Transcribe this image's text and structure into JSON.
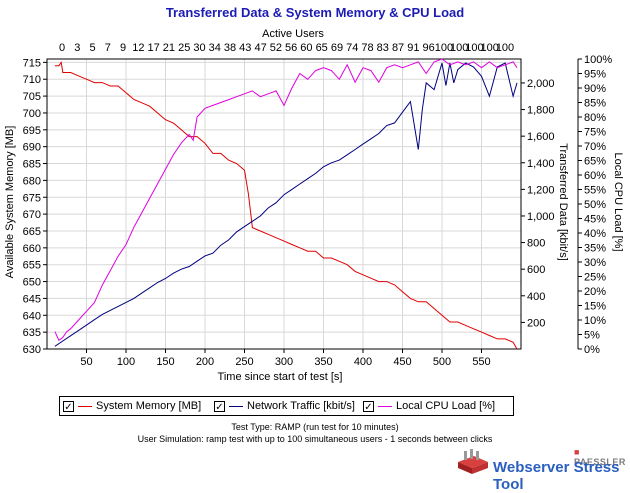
{
  "title": "Transferred Data & System Memory & CPU Load",
  "top_axis_label": "Active Users",
  "top_ticks": [
    "0",
    "3",
    "5",
    "7",
    "9",
    "12",
    "17",
    "21",
    "25",
    "30",
    "34",
    "38",
    "43",
    "47",
    "52",
    "56",
    "60",
    "65",
    "69",
    "74",
    "78",
    "83",
    "87",
    "91",
    "96",
    "100",
    "100",
    "100",
    "100",
    "100"
  ],
  "legend": {
    "memory": "System Memory [MB]",
    "network": "Network Traffic [kbit/s]",
    "cpu": "Local CPU Load [%]"
  },
  "footer": {
    "line1": "Test Type: RAMP (run test for 10 minutes)",
    "line2": "User Simulation: ramp test with up to 100 simultaneous users - 1 seconds between clicks"
  },
  "brand": {
    "company": "PAESSLER",
    "product": "Webserver Stress Tool"
  },
  "colors": {
    "memory": "#e00000",
    "network": "#000080",
    "cpu": "#e000e0",
    "title": "#1c1cb4",
    "grid": "#d8d8d8"
  },
  "chart_data": {
    "type": "line",
    "title": "Transferred Data & System Memory & CPU Load",
    "xlabel": "Time since start of test [s]",
    "xlim": [
      0,
      600
    ],
    "x_ticks": [
      50,
      100,
      150,
      200,
      250,
      300,
      350,
      400,
      450,
      500,
      550
    ],
    "grid": true,
    "axes": {
      "left": {
        "label": "Available System Memory [MB]",
        "range": [
          630,
          716
        ],
        "ticks": [
          630,
          635,
          640,
          645,
          650,
          655,
          660,
          665,
          670,
          675,
          680,
          685,
          690,
          695,
          700,
          705,
          710,
          715
        ]
      },
      "right1": {
        "label": "Transferred Data [kbit/s]",
        "range": [
          0,
          2180
        ],
        "ticks": [
          200,
          400,
          600,
          800,
          1000,
          1200,
          1400,
          1600,
          1800,
          2000
        ],
        "tick_labels": [
          "200",
          "400",
          "600",
          "800",
          "1,000",
          "1,200",
          "1,400",
          "1,600",
          "1,800",
          "2,000"
        ]
      },
      "right2": {
        "label": "Local CPU Load [%]",
        "range": [
          0,
          100
        ],
        "ticks": [
          0,
          5,
          10,
          15,
          20,
          25,
          30,
          35,
          40,
          45,
          50,
          55,
          60,
          65,
          70,
          75,
          80,
          85,
          90,
          95,
          100
        ],
        "tick_labels": [
          "0%",
          "5%",
          "10%",
          "15%",
          "20%",
          "25%",
          "30%",
          "35%",
          "40%",
          "45%",
          "50%",
          "55%",
          "60%",
          "65%",
          "70%",
          "75%",
          "80%",
          "85%",
          "90%",
          "95%",
          "100%"
        ]
      }
    },
    "series": [
      {
        "name": "System Memory [MB]",
        "axis": "left",
        "color": "#e00000",
        "x": [
          10,
          15,
          18,
          20,
          30,
          40,
          50,
          60,
          70,
          80,
          90,
          100,
          110,
          120,
          130,
          140,
          150,
          160,
          165,
          170,
          180,
          190,
          200,
          210,
          220,
          230,
          240,
          250,
          255,
          260,
          270,
          280,
          290,
          300,
          310,
          320,
          330,
          340,
          350,
          360,
          370,
          380,
          390,
          400,
          410,
          420,
          430,
          440,
          450,
          460,
          470,
          480,
          490,
          500,
          510,
          520,
          530,
          540,
          550,
          560,
          570,
          580,
          590,
          595
        ],
        "values": [
          714,
          714,
          715,
          712,
          712,
          711,
          710,
          709,
          709,
          708,
          708,
          706,
          704,
          703,
          702,
          700,
          698,
          697,
          696,
          695,
          693,
          693,
          691,
          688,
          688,
          686,
          685,
          683,
          676,
          666,
          665,
          664,
          663,
          662,
          661,
          660,
          659,
          659,
          657,
          657,
          656,
          655,
          653,
          652,
          651,
          650,
          650,
          649,
          647,
          645,
          644,
          644,
          642,
          640,
          638,
          638,
          637,
          636,
          635,
          634,
          633,
          633,
          632,
          630
        ]
      },
      {
        "name": "Network Traffic [kbit/s]",
        "axis": "right1",
        "color": "#000080",
        "x": [
          10,
          20,
          30,
          40,
          50,
          60,
          70,
          80,
          90,
          100,
          110,
          120,
          130,
          140,
          150,
          160,
          170,
          180,
          190,
          200,
          210,
          220,
          230,
          240,
          250,
          260,
          270,
          280,
          290,
          300,
          310,
          320,
          330,
          340,
          350,
          360,
          370,
          380,
          390,
          400,
          410,
          420,
          430,
          440,
          450,
          460,
          470,
          475,
          480,
          490,
          500,
          505,
          510,
          515,
          520,
          530,
          540,
          550,
          560,
          570,
          580,
          590,
          595
        ],
        "values": [
          20,
          60,
          100,
          140,
          180,
          220,
          260,
          290,
          320,
          350,
          380,
          420,
          460,
          500,
          530,
          570,
          600,
          620,
          660,
          700,
          720,
          780,
          820,
          880,
          920,
          960,
          1000,
          1060,
          1100,
          1160,
          1200,
          1240,
          1280,
          1320,
          1370,
          1400,
          1420,
          1460,
          1500,
          1540,
          1580,
          1620,
          1680,
          1700,
          1780,
          1860,
          1500,
          1800,
          2000,
          1950,
          2150,
          1980,
          2150,
          2000,
          2100,
          2150,
          2120,
          2050,
          1900,
          2120,
          2150,
          1900,
          2000
        ]
      },
      {
        "name": "Local CPU Load [%]",
        "axis": "right2",
        "color": "#e000e0",
        "x": [
          10,
          15,
          20,
          25,
          30,
          40,
          50,
          60,
          70,
          80,
          90,
          100,
          110,
          120,
          130,
          140,
          150,
          160,
          170,
          180,
          185,
          190,
          200,
          210,
          220,
          230,
          240,
          250,
          260,
          270,
          280,
          290,
          300,
          310,
          320,
          330,
          340,
          350,
          360,
          370,
          380,
          390,
          400,
          410,
          420,
          430,
          440,
          450,
          460,
          470,
          480,
          490,
          500,
          510,
          520,
          530,
          540,
          550,
          560,
          570,
          580,
          590,
          595
        ],
        "values": [
          6,
          3,
          4,
          6,
          7,
          10,
          13,
          16,
          22,
          27,
          32,
          36,
          42,
          47,
          52,
          57,
          62,
          67,
          71,
          74,
          72,
          80,
          83,
          84,
          85,
          86,
          87,
          88,
          89,
          87,
          88,
          89,
          84,
          90,
          95,
          93,
          96,
          97,
          96,
          93,
          98,
          92,
          97,
          96,
          92,
          97,
          98,
          97,
          98,
          99,
          95,
          99,
          100,
          98,
          99,
          98,
          99,
          97,
          99,
          97,
          98,
          99,
          97
        ]
      }
    ]
  }
}
